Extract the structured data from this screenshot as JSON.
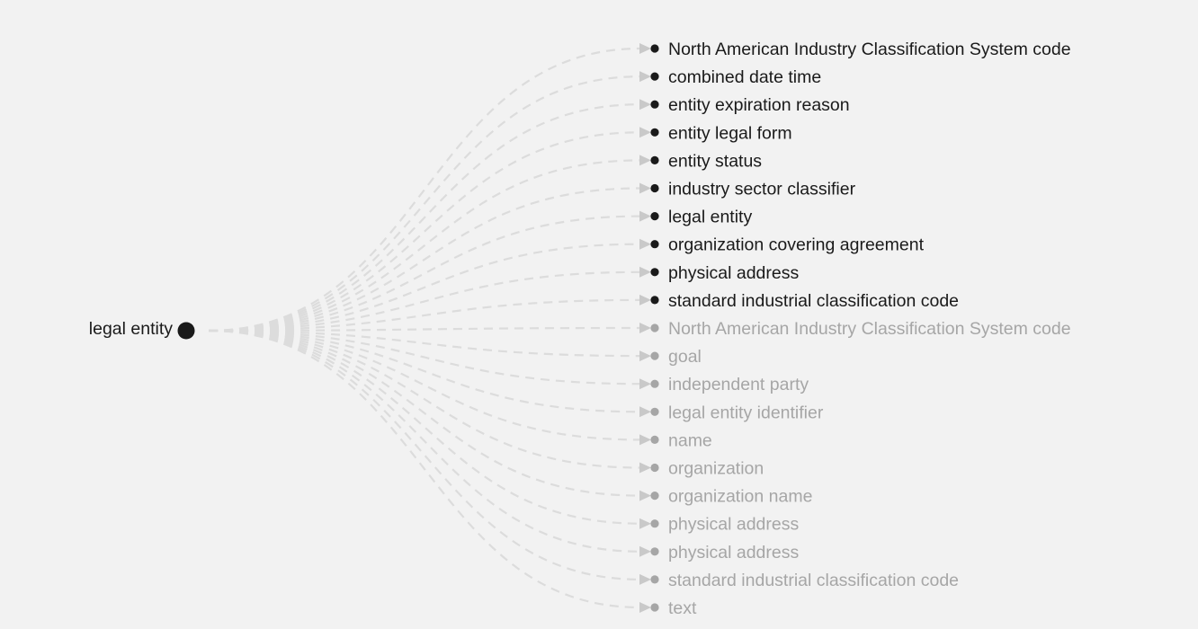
{
  "root": {
    "label": "legal entity"
  },
  "active_nodes": [
    {
      "label": "North American Industry Classification System code"
    },
    {
      "label": "combined date time"
    },
    {
      "label": "entity expiration reason"
    },
    {
      "label": "entity legal form"
    },
    {
      "label": "entity status"
    },
    {
      "label": "industry sector classifier"
    },
    {
      "label": "legal entity"
    },
    {
      "label": "organization covering agreement"
    },
    {
      "label": "physical address"
    },
    {
      "label": "standard industrial classification code"
    }
  ],
  "inactive_nodes": [
    {
      "label": "North American Industry Classification System code"
    },
    {
      "label": "goal"
    },
    {
      "label": "independent party"
    },
    {
      "label": "legal entity identifier"
    },
    {
      "label": "name"
    },
    {
      "label": "organization"
    },
    {
      "label": "organization name"
    },
    {
      "label": "physical address"
    },
    {
      "label": "physical address"
    },
    {
      "label": "standard industrial classification code"
    },
    {
      "label": "text"
    }
  ],
  "colors": {
    "background": "#f2f2f2",
    "active_text": "#1a1a1a",
    "inactive_text": "#a6a6a6",
    "active_dot": "#1a1a1a",
    "inactive_dot": "#a6a6a6",
    "link": "#dcdcdc",
    "arrow": "#c9c9c9"
  }
}
